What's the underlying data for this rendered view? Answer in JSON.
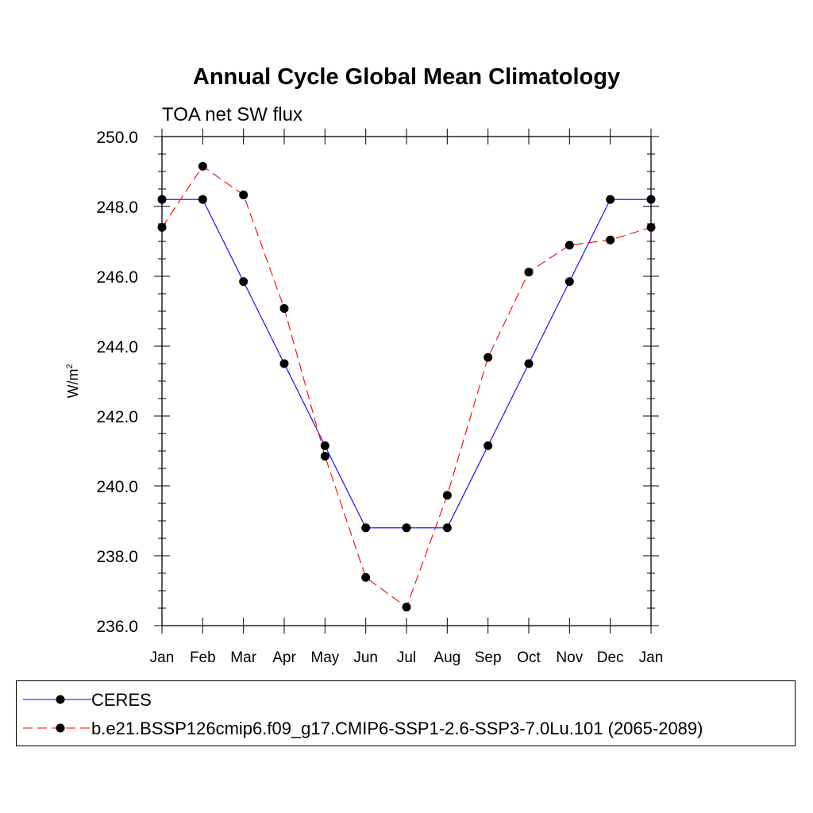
{
  "chart_data": {
    "type": "line",
    "title": "Annual Cycle Global Mean Climatology",
    "subtitle": "TOA net SW flux",
    "ylabel": "W/m",
    "ylabel_sup": "2",
    "ylim": [
      236.0,
      250.0
    ],
    "yticks": [
      "236.0",
      "238.0",
      "240.0",
      "242.0",
      "244.0",
      "246.0",
      "248.0",
      "250.0"
    ],
    "categories": [
      "Jan",
      "Feb",
      "Mar",
      "Apr",
      "May",
      "Jun",
      "Jul",
      "Aug",
      "Sep",
      "Oct",
      "Nov",
      "Dec",
      "Jan"
    ],
    "series": [
      {
        "name": "CERES",
        "color": "#0000ff",
        "dash": "solid",
        "values": [
          248.2,
          248.2,
          245.85,
          243.5,
          241.15,
          238.8,
          238.8,
          238.8,
          241.15,
          243.5,
          245.85,
          248.2,
          248.2
        ]
      },
      {
        "name": "b.e21.BSSP126cmip6.f09_g17.CMIP6-SSP1-2.6-SSP3-7.0Lu.101 (2065-2089)",
        "color": "#ff0000",
        "dash": "dashed",
        "values": [
          247.4,
          249.15,
          248.33,
          245.08,
          240.85,
          237.38,
          236.53,
          239.73,
          243.68,
          246.12,
          246.89,
          247.04,
          247.4
        ]
      }
    ],
    "legend_position": "bottom",
    "grid": false
  }
}
